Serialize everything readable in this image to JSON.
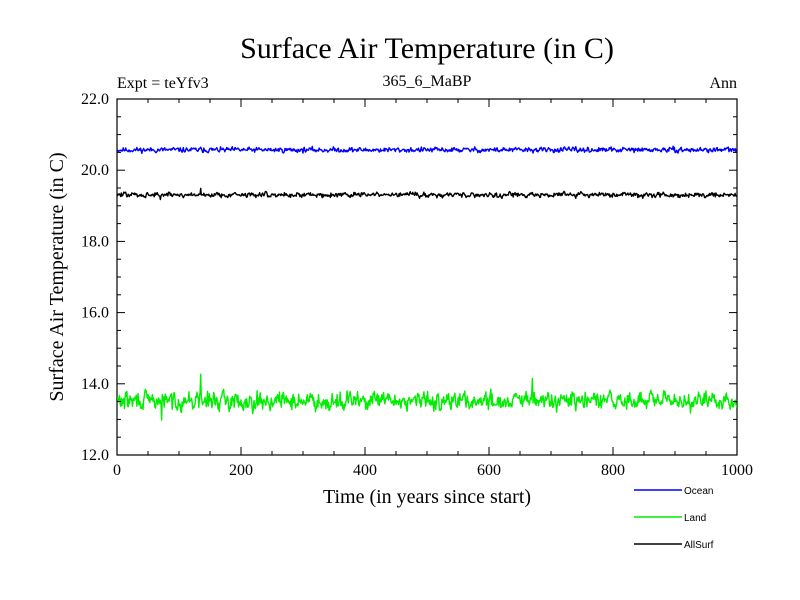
{
  "chart_data": {
    "type": "line",
    "title": "Surface Air Temperature (in C)",
    "subtitle": "365_6_MaBP",
    "left_label": "Expt = teYfv3",
    "right_label": "Ann",
    "xlabel": "Time (in years since start)",
    "ylabel": "Surface Air Temperature (in C)",
    "xlim": [
      0,
      1000
    ],
    "ylim": [
      12.0,
      22.0
    ],
    "x_ticks": [
      0,
      200,
      400,
      600,
      800,
      1000
    ],
    "x_tick_labels": [
      "0",
      "200",
      "400",
      "600",
      "800",
      "1000"
    ],
    "y_ticks": [
      12.0,
      14.0,
      16.0,
      18.0,
      20.0,
      22.0
    ],
    "y_tick_labels": [
      "12.0",
      "14.0",
      "16.0",
      "18.0",
      "20.0",
      "22.0"
    ],
    "legend_position": "bottom-right, below plot",
    "series": [
      {
        "name": "Ocean",
        "color": "#0000ff",
        "mean": 20.57,
        "noise": 0.045,
        "values": []
      },
      {
        "name": "Land",
        "color": "#00ee00",
        "mean": 13.52,
        "noise": 0.16,
        "values": []
      },
      {
        "name": "AllSurf",
        "color": "#000000",
        "mean": 19.31,
        "noise": 0.045,
        "values": []
      }
    ],
    "annotations": "Annual-mean series, 1000 model years, approximately flat with interannual noise; Land spikes near year 135 (~14.3) and year 670 (~14.1); AllSurf spike near year 135 (~19.5)."
  }
}
